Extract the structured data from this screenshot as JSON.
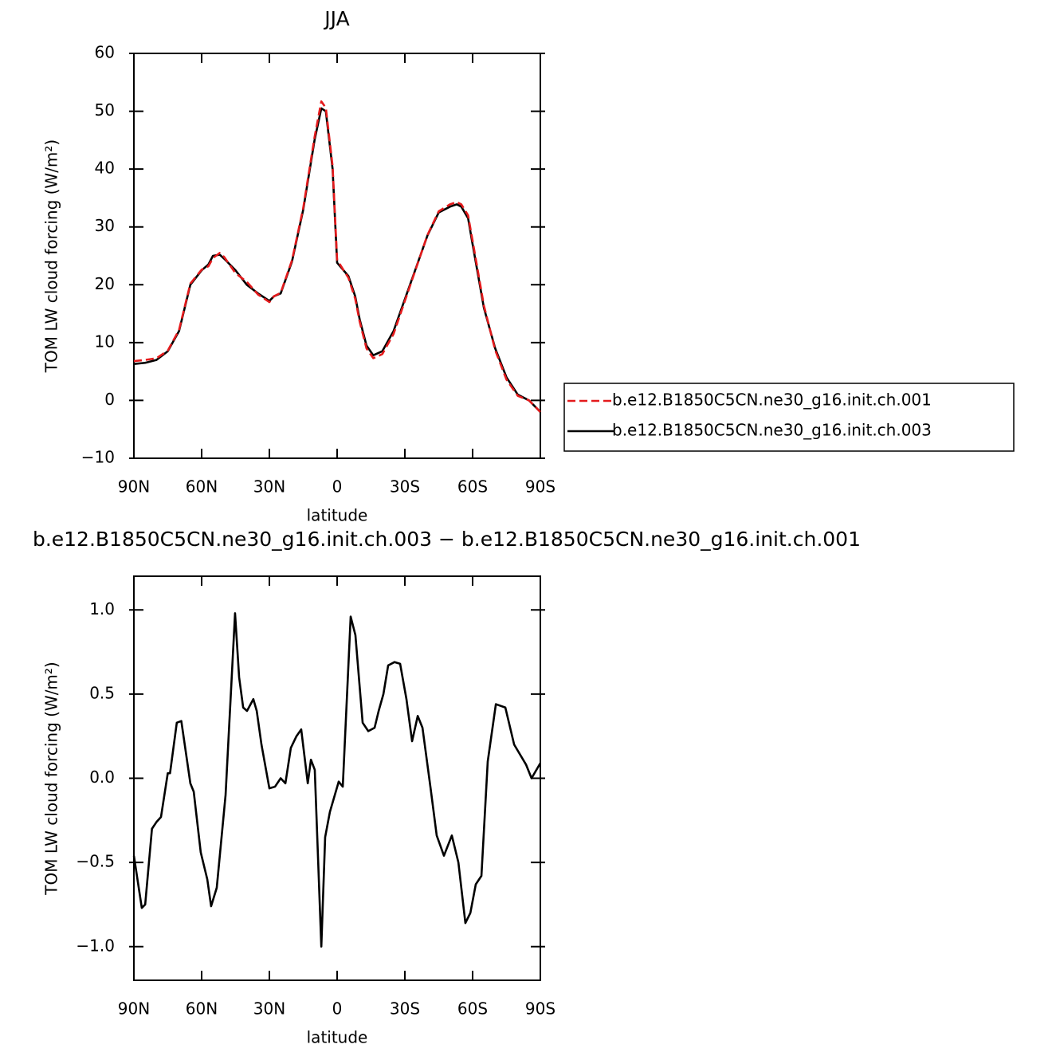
{
  "chart_data": [
    {
      "type": "line",
      "title": "JJA",
      "xlabel": "latitude",
      "ylabel": "TOM LW cloud forcing (W/m²)",
      "xlim": [
        90,
        -90
      ],
      "xticks": [
        {
          "value": 90,
          "label": "90N"
        },
        {
          "value": 60,
          "label": "60N"
        },
        {
          "value": 30,
          "label": "30N"
        },
        0,
        {
          "value": -30,
          "label": "30S"
        },
        {
          "value": -60,
          "label": "60S"
        },
        {
          "value": -90,
          "label": "90S"
        }
      ],
      "ylim": [
        -10,
        60
      ],
      "yticks": [
        {
          "value": -10,
          "label": "−10"
        },
        0,
        10,
        20,
        30,
        40,
        50,
        60
      ],
      "legend": "right",
      "x": [
        90,
        85,
        80,
        75,
        70,
        65,
        60,
        57,
        55,
        52,
        50,
        45,
        40,
        35,
        30,
        28,
        25,
        20,
        15,
        10,
        7,
        5,
        2,
        0,
        -5,
        -8,
        -10,
        -13,
        -16,
        -20,
        -25,
        -30,
        -35,
        -40,
        -45,
        -50,
        -53,
        -55,
        -58,
        -60,
        -65,
        -70,
        -75,
        -80,
        -85,
        -90
      ],
      "series": [
        {
          "name": "b.e12.B1850C5CN.ne30_g16.init.ch.001",
          "color": "#e41a1c",
          "line_style": "dashed",
          "values": [
            6.8,
            7.0,
            7.3,
            8.6,
            12.2,
            20.2,
            22.6,
            23.2,
            24.6,
            25.5,
            24.8,
            22.0,
            20.5,
            18.3,
            17.0,
            18.0,
            18.6,
            24.2,
            33.3,
            45.5,
            51.7,
            50.6,
            40.5,
            24.3,
            21.2,
            17.6,
            13.6,
            9.0,
            7.3,
            8.0,
            11.5,
            17.2,
            22.9,
            28.6,
            32.7,
            33.9,
            34.3,
            33.9,
            32.0,
            27.6,
            16.4,
            8.7,
            3.6,
            0.8,
            0.0,
            -2.0
          ]
        },
        {
          "name": "b.e12.B1850C5CN.ne30_g16.init.ch.003",
          "color": "#000000",
          "line_style": "solid",
          "values": [
            6.3,
            6.5,
            7.0,
            8.5,
            12.0,
            20.0,
            22.5,
            23.5,
            25.0,
            25.2,
            24.5,
            22.5,
            20.0,
            18.5,
            17.2,
            18.0,
            18.5,
            24.0,
            33.0,
            45.0,
            50.5,
            50.0,
            40.0,
            23.8,
            21.5,
            18.0,
            14.0,
            9.5,
            7.8,
            8.5,
            12.0,
            17.5,
            23.0,
            28.5,
            32.5,
            33.5,
            33.9,
            33.5,
            31.5,
            27.0,
            16.0,
            9.0,
            4.0,
            1.0,
            0.0,
            -2.0
          ]
        }
      ]
    },
    {
      "type": "line",
      "title": "b.e12.B1850C5CN.ne30_g16.init.ch.003 − b.e12.B1850C5CN.ne30_g16.init.ch.001",
      "xlabel": "latitude",
      "ylabel": "TOM LW cloud forcing (W/m²)",
      "xlim": [
        90,
        -90
      ],
      "xticks": [
        {
          "value": 90,
          "label": "90N"
        },
        {
          "value": 60,
          "label": "60N"
        },
        {
          "value": 30,
          "label": "30N"
        },
        0,
        {
          "value": -30,
          "label": "30S"
        },
        {
          "value": -60,
          "label": "60S"
        },
        {
          "value": -90,
          "label": "90S"
        }
      ],
      "ylim": [
        -1.2,
        1.2
      ],
      "yticks": [
        {
          "value": -1.0,
          "label": "−1.0"
        },
        {
          "value": -0.5,
          "label": "−0.5"
        },
        {
          "value": 0.0,
          "label": "0.0"
        },
        {
          "value": 0.5,
          "label": "0.5"
        },
        {
          "value": 1.0,
          "label": "1.0"
        }
      ],
      "x": [
        90,
        86.5,
        85,
        82,
        80,
        78,
        75,
        74,
        71,
        69,
        65,
        63.5,
        60.4,
        57.5,
        55.8,
        53.3,
        49.4,
        45.2,
        43.4,
        41.6,
        39.9,
        37.1,
        35.6,
        33.5,
        30,
        27.5,
        25,
        22.9,
        20.5,
        18,
        15.9,
        13,
        11.6,
        9.9,
        7,
        5.3,
        3.2,
        -0.7,
        -2.5,
        -6,
        -8.1,
        -11.3,
        -13.8,
        -16.6,
        -18.4,
        -20.5,
        -22.6,
        -25.4,
        -27.9,
        -30.7,
        -33.2,
        -35.7,
        -37.8,
        -41.3,
        -44.1,
        -47.3,
        -50.8,
        -53.7,
        -56.8,
        -59,
        -61.4,
        -63.9,
        -66.7,
        -70.3,
        -74.5,
        -78.4,
        -83.7,
        -86.1,
        -90
      ],
      "series": [
        {
          "color": "#000000",
          "line_style": "solid",
          "values": [
            -0.46,
            -0.77,
            -0.75,
            -0.3,
            -0.26,
            -0.23,
            0.03,
            0.03,
            0.33,
            0.34,
            -0.03,
            -0.08,
            -0.44,
            -0.6,
            -0.76,
            -0.65,
            -0.1,
            0.98,
            0.6,
            0.42,
            0.4,
            0.47,
            0.4,
            0.2,
            -0.06,
            -0.05,
            0.0,
            -0.03,
            0.18,
            0.25,
            0.29,
            -0.03,
            0.11,
            0.05,
            -1.0,
            -0.35,
            -0.2,
            -0.02,
            -0.05,
            0.96,
            0.85,
            0.33,
            0.28,
            0.3,
            0.4,
            0.5,
            0.67,
            0.69,
            0.68,
            0.47,
            0.22,
            0.37,
            0.3,
            -0.05,
            -0.34,
            -0.46,
            -0.34,
            -0.5,
            -0.86,
            -0.8,
            -0.63,
            -0.58,
            0.1,
            0.44,
            0.42,
            0.2,
            0.08,
            0.0,
            0.09
          ]
        }
      ]
    }
  ]
}
